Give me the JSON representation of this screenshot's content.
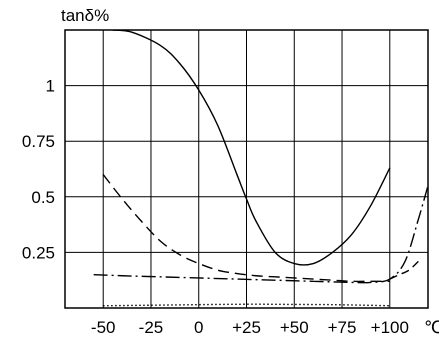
{
  "chart_data": {
    "type": "line",
    "title": "",
    "ylabel": "tanδ%",
    "xlabel": "",
    "x_unit_label": "℃",
    "xlim": [
      -70,
      120
    ],
    "ylim": [
      0,
      1.25
    ],
    "grid": true,
    "x_ticks": [
      -50,
      -25,
      0,
      25,
      50,
      75,
      100
    ],
    "x_tick_labels": [
      "-50",
      "-25",
      "0",
      "+25",
      "+50",
      "+75",
      "+100"
    ],
    "y_ticks": [
      0.25,
      0.5,
      0.75,
      1
    ],
    "y_tick_labels": [
      "0.25",
      "0.5",
      "0.75",
      "1"
    ],
    "series": [
      {
        "style": "solid",
        "color": "#000000",
        "x": [
          -45,
          -35,
          -20,
          -10,
          0,
          10,
          20,
          25,
          30,
          40,
          50,
          60,
          70,
          80,
          90,
          100
        ],
        "y": [
          1.25,
          1.24,
          1.18,
          1.1,
          0.98,
          0.82,
          0.6,
          0.49,
          0.39,
          0.25,
          0.2,
          0.2,
          0.25,
          0.33,
          0.46,
          0.63
        ]
      },
      {
        "style": "dashed",
        "color": "#000000",
        "x": [
          -50,
          -40,
          -30,
          -20,
          -10,
          0,
          10,
          20,
          30,
          40,
          50,
          60,
          70,
          80,
          90,
          100
        ],
        "y": [
          0.6,
          0.49,
          0.39,
          0.3,
          0.24,
          0.2,
          0.17,
          0.155,
          0.145,
          0.14,
          0.135,
          0.13,
          0.125,
          0.12,
          0.12,
          0.12
        ]
      },
      {
        "style": "dash-dot",
        "color": "#000000",
        "x": [
          -55,
          -40,
          -20,
          0,
          20,
          40,
          60,
          80,
          90,
          100,
          108,
          115,
          120
        ],
        "y": [
          0.15,
          0.145,
          0.14,
          0.135,
          0.13,
          0.125,
          0.12,
          0.115,
          0.115,
          0.13,
          0.21,
          0.4,
          0.55
        ]
      },
      {
        "style": "long-dash",
        "color": "#000000",
        "x": [
          100,
          105,
          110,
          115
        ],
        "y": [
          0.13,
          0.15,
          0.17,
          0.21
        ]
      },
      {
        "style": "dotted",
        "color": "#000000",
        "x": [
          -50,
          -30,
          -10,
          10,
          30,
          50,
          70,
          90,
          100
        ],
        "y": [
          0.01,
          0.012,
          0.014,
          0.016,
          0.017,
          0.016,
          0.015,
          0.012,
          0.01
        ]
      }
    ]
  }
}
